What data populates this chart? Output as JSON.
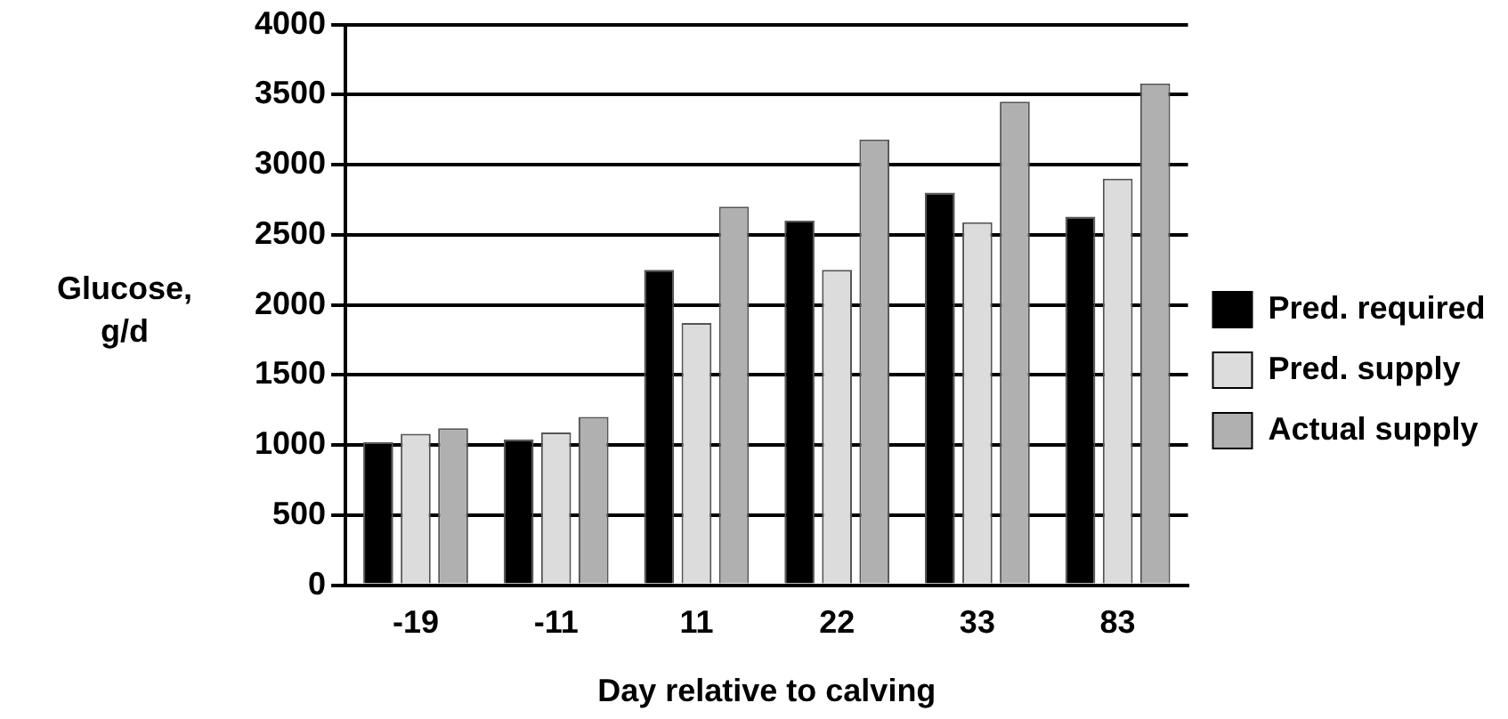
{
  "chart_data": {
    "type": "bar",
    "xlabel": "Day relative to calving",
    "ylabel": "Glucose, g/d",
    "categories": [
      "-19",
      "-11",
      "11",
      "22",
      "33",
      "83"
    ],
    "series": [
      {
        "name": "Pred. required",
        "color": "#000000",
        "values": [
          1020,
          1040,
          2250,
          2600,
          2800,
          2630
        ]
      },
      {
        "name": "Pred. supply",
        "color": "#dcdcdc",
        "values": [
          1080,
          1090,
          1870,
          2250,
          2590,
          2900
        ]
      },
      {
        "name": "Actual supply",
        "color": "#b0b0b0",
        "values": [
          1120,
          1200,
          2700,
          3180,
          3450,
          3580
        ]
      }
    ],
    "ylim": [
      0,
      4000
    ],
    "yticks": [
      0,
      500,
      1000,
      1500,
      2000,
      2500,
      3000,
      3500,
      4000
    ],
    "grid": "y",
    "legend": "right"
  }
}
